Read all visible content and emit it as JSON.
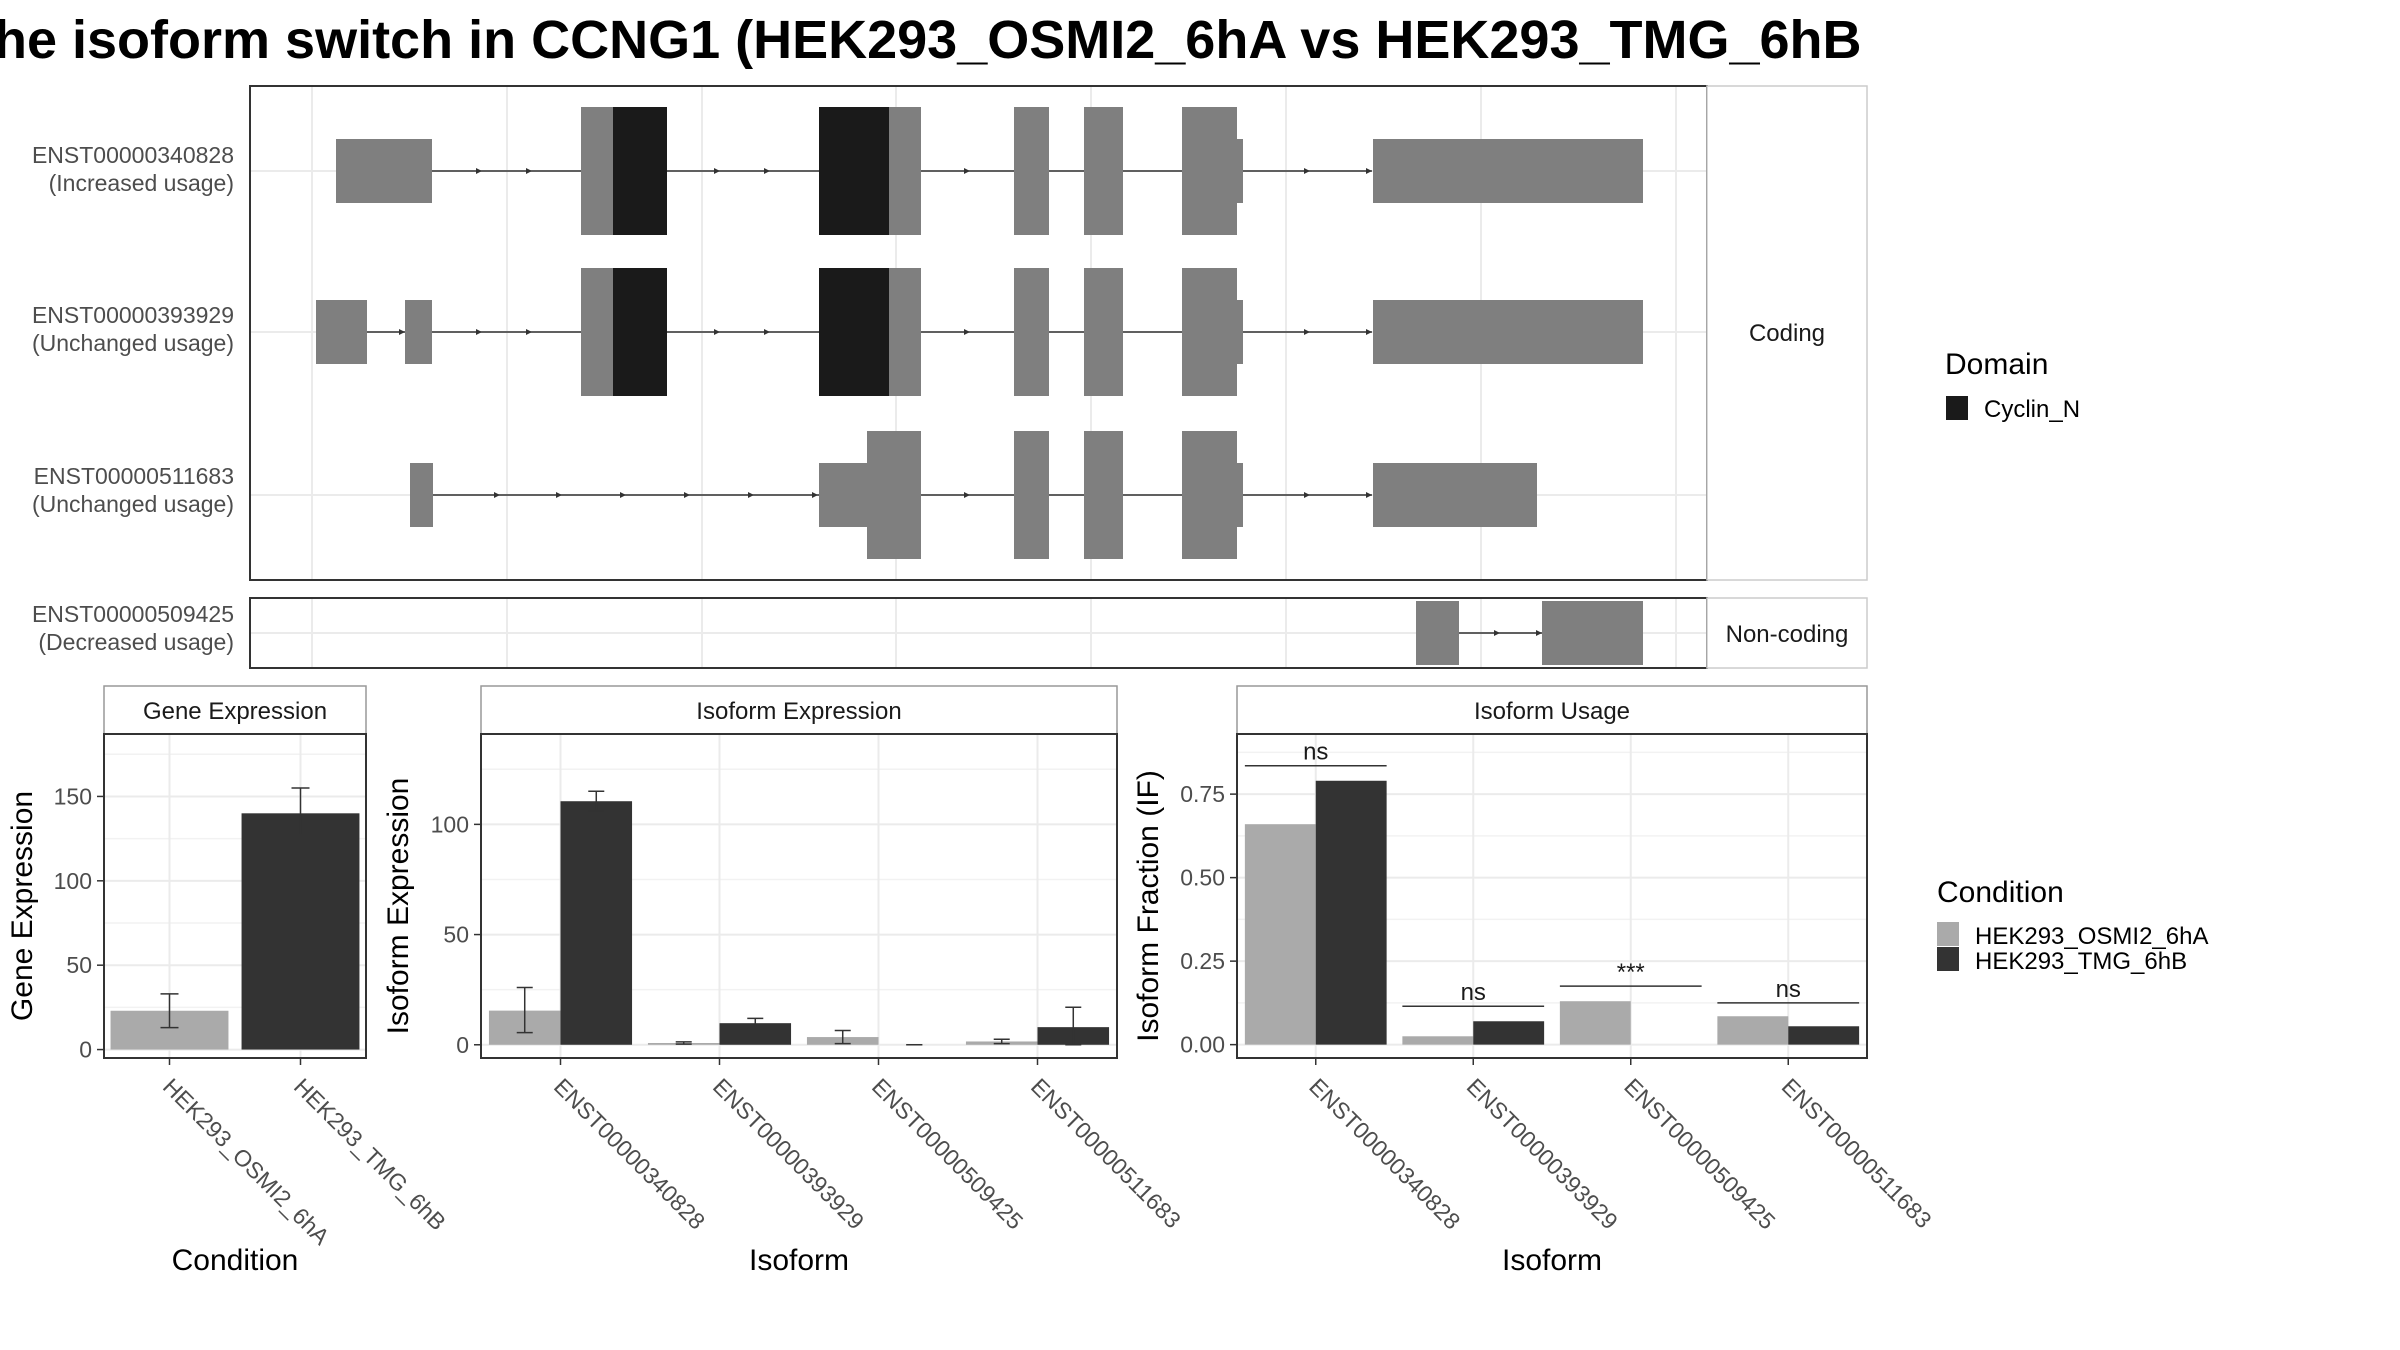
{
  "figure": {
    "title": "he isoform switch in CCNG1 (HEK293_OSMI2_6hA vs HEK293_TMG_6hB"
  },
  "colors": {
    "domain_cyclin_n": "#1a1a1a",
    "exon": "#7f7f7f",
    "condition_a": "#aaaaaa",
    "condition_b": "#333333",
    "panel_border": "#333333",
    "strip_border": "#999999",
    "grid": "#ebebeb"
  },
  "structure": {
    "isoforms": [
      {
        "id": "ENST00000340828",
        "usage": "(Increased usage)",
        "group": "Coding"
      },
      {
        "id": "ENST00000393929",
        "usage": "(Unchanged usage)",
        "group": "Coding"
      },
      {
        "id": "ENST00000511683",
        "usage": "(Unchanged usage)",
        "group": "Coding"
      },
      {
        "id": "ENST00000509425",
        "usage": "(Decreased usage)",
        "group": "Non-coding"
      }
    ],
    "groups": [
      "Coding",
      "Non-coding"
    ]
  },
  "legends": {
    "domain": {
      "title": "Domain",
      "items": [
        {
          "label": "Cyclin_N",
          "color": "#1a1a1a"
        }
      ]
    },
    "condition": {
      "title": "Condition",
      "items": [
        {
          "label": "HEK293_OSMI2_6hA",
          "color": "#aaaaaa"
        },
        {
          "label": "HEK293_TMG_6hB",
          "color": "#333333"
        }
      ]
    }
  },
  "chart_data": [
    {
      "type": "bar",
      "title": "Gene Expression",
      "xlabel": "Condition",
      "ylabel": "Gene Expression",
      "categories": [
        "HEK293_OSMI2_6hA",
        "HEK293_TMG_6hB"
      ],
      "values": [
        23,
        140
      ],
      "error_low": [
        13,
        127
      ],
      "error_high": [
        33,
        155
      ],
      "ylim": [
        -5,
        187
      ],
      "yticks": [
        0,
        50,
        100,
        150
      ],
      "grid": true
    },
    {
      "type": "bar",
      "title": "Isoform Expression",
      "xlabel": "Isoform",
      "ylabel": "Isoform Expression",
      "categories": [
        "ENST00000340828",
        "ENST00000393929",
        "ENST00000509425",
        "ENST00000511683"
      ],
      "series": [
        {
          "name": "HEK293_OSMI2_6hA",
          "values": [
            15.5,
            0.8,
            3.5,
            1.5
          ],
          "error_low": [
            5.5,
            0.3,
            0.5,
            0.5
          ],
          "error_high": [
            26,
            1.3,
            6.5,
            2.5
          ]
        },
        {
          "name": "HEK293_TMG_6hB",
          "values": [
            110.5,
            9.8,
            0,
            8
          ],
          "error_low": [
            106,
            7.5,
            0,
            0
          ],
          "error_high": [
            115,
            12,
            0,
            17
          ]
        }
      ],
      "ylim": [
        -6,
        141
      ],
      "yticks": [
        0,
        50,
        100
      ],
      "grid": true
    },
    {
      "type": "bar",
      "title": "Isoform Usage",
      "xlabel": "Isoform",
      "ylabel": "Isoform Fraction (IF)",
      "categories": [
        "ENST00000340828",
        "ENST00000393929",
        "ENST00000509425",
        "ENST00000511683"
      ],
      "series": [
        {
          "name": "HEK293_OSMI2_6hA",
          "values": [
            0.66,
            0.025,
            0.13,
            0.085
          ]
        },
        {
          "name": "HEK293_TMG_6hB",
          "values": [
            0.79,
            0.07,
            0,
            0.055
          ]
        }
      ],
      "significance": [
        "ns",
        "ns",
        "***",
        "ns"
      ],
      "sig_line_y": [
        0.835,
        0.115,
        0.175,
        0.125
      ],
      "ylim": [
        -0.04,
        0.93
      ],
      "yticks": [
        0.0,
        0.25,
        0.5,
        0.75
      ],
      "ytick_labels": [
        "0.00",
        "0.25",
        "0.50",
        "0.75"
      ],
      "grid": true
    }
  ]
}
